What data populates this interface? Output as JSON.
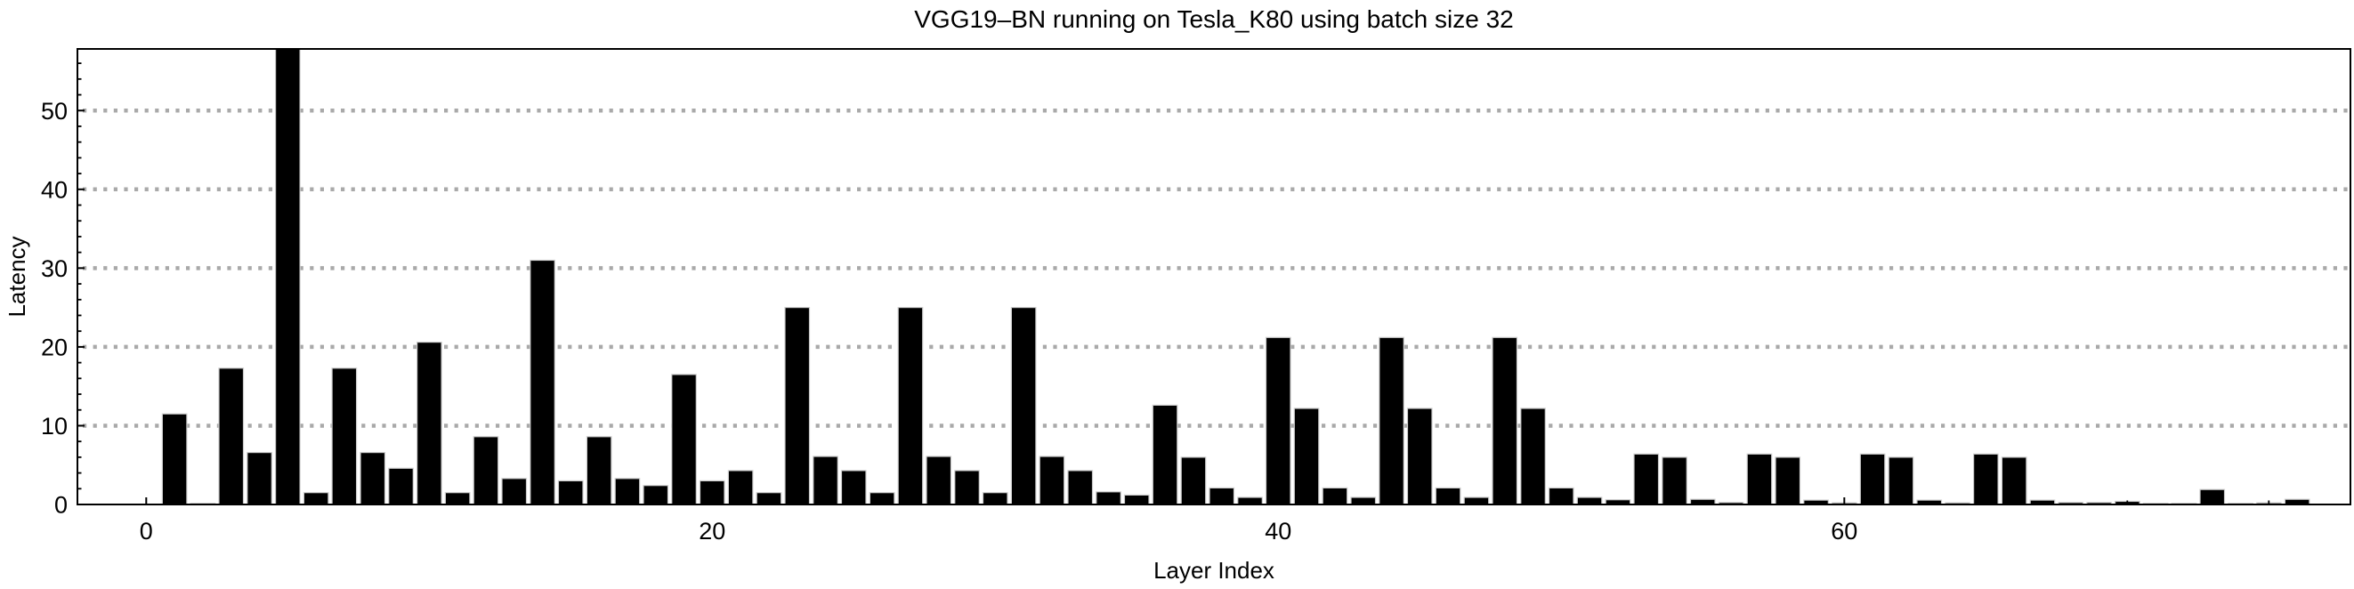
{
  "chart_data": {
    "type": "bar",
    "title": "VGG19–BN running on Tesla_K80 using batch size 32",
    "xlabel": "Layer Index",
    "ylabel": "Latency",
    "x": [
      1,
      2,
      3,
      4,
      5,
      6,
      7,
      8,
      9,
      10,
      11,
      12,
      13,
      14,
      15,
      16,
      17,
      18,
      19,
      20,
      21,
      22,
      23,
      24,
      25,
      26,
      27,
      28,
      29,
      30,
      31,
      32,
      33,
      34,
      35,
      36,
      37,
      38,
      39,
      40,
      41,
      42,
      43,
      44,
      45,
      46,
      47,
      48,
      49,
      50,
      51,
      52,
      53,
      54,
      55,
      56,
      57,
      58,
      59,
      60,
      61,
      62,
      63,
      64,
      65,
      66,
      67,
      68,
      69,
      70,
      71,
      72,
      73,
      74,
      75,
      76
    ],
    "values": [
      11.5,
      0.15,
      17.3,
      6.6,
      57.8,
      1.5,
      17.3,
      6.6,
      4.6,
      20.6,
      1.5,
      8.6,
      3.3,
      31.0,
      3.0,
      8.6,
      3.3,
      2.4,
      16.5,
      3.0,
      4.3,
      1.5,
      25.0,
      6.1,
      4.3,
      1.5,
      25.0,
      6.1,
      4.3,
      1.5,
      25.0,
      6.1,
      4.3,
      1.6,
      1.2,
      12.6,
      6.0,
      2.1,
      0.9,
      21.2,
      12.2,
      2.1,
      0.9,
      21.2,
      12.2,
      2.1,
      0.9,
      21.2,
      12.2,
      2.1,
      0.9,
      0.6,
      6.4,
      6.0,
      0.65,
      0.25,
      6.4,
      6.0,
      0.55,
      0.2,
      6.4,
      6.0,
      0.55,
      0.2,
      6.4,
      6.0,
      0.55,
      0.25,
      0.25,
      0.4,
      0.15,
      0.15,
      1.9,
      0.15,
      0.2,
      0.65
    ],
    "xticks": [
      0,
      20,
      40,
      60
    ],
    "yticks": [
      0,
      10,
      20,
      30,
      40,
      50
    ],
    "x_minor_tick_step": 5,
    "y_minor_tick_step": 2,
    "xlim": [
      -2.4,
      77.9
    ],
    "ylim": [
      0,
      57.8
    ],
    "grid": "horizontal dotted lines at y = 10,20,30,40,50",
    "legend": null,
    "colors": {
      "bar": "#000000",
      "bar_edge": "#cccccc",
      "grid": "#a9a9a9",
      "frame": "#000000",
      "text": "#000000",
      "background": "#ffffff"
    }
  }
}
